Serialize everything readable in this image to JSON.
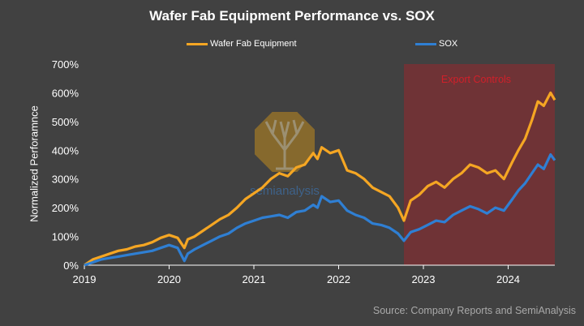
{
  "chart_data": {
    "type": "line",
    "title": "Wafer Fab Equipment Performance vs. SOX",
    "ylabel": "Normalized Perforamnce",
    "xlabel": "",
    "source": "Source: Company Reports and SemiAnalysis",
    "xlim": [
      2019.0,
      2024.55
    ],
    "ylim": [
      0,
      700
    ],
    "yticks": [
      0,
      100,
      200,
      300,
      400,
      500,
      600,
      700
    ],
    "ytick_labels": [
      "0%",
      "100%",
      "200%",
      "300%",
      "400%",
      "500%",
      "600%",
      "700%"
    ],
    "xticks": [
      2019,
      2020,
      2021,
      2022,
      2023,
      2024
    ],
    "xtick_labels": [
      "2019",
      "2020",
      "2021",
      "2022",
      "2023",
      "2024"
    ],
    "grid": false,
    "legend_position": "top",
    "annotation": {
      "label": "Export Controls",
      "x_start": 2022.77,
      "x_end": 2024.55
    },
    "watermark": "semianalysis",
    "series": [
      {
        "name": "Wafer Fab Equipment",
        "color": "#f5a623",
        "x": [
          2019.0,
          2019.1,
          2019.2,
          2019.3,
          2019.4,
          2019.5,
          2019.6,
          2019.7,
          2019.8,
          2019.9,
          2020.0,
          2020.1,
          2020.18,
          2020.22,
          2020.3,
          2020.4,
          2020.5,
          2020.6,
          2020.7,
          2020.8,
          2020.9,
          2021.0,
          2021.1,
          2021.2,
          2021.3,
          2021.4,
          2021.5,
          2021.6,
          2021.7,
          2021.75,
          2021.8,
          2021.9,
          2022.0,
          2022.1,
          2022.2,
          2022.3,
          2022.4,
          2022.5,
          2022.6,
          2022.7,
          2022.77,
          2022.85,
          2022.95,
          2023.05,
          2023.15,
          2023.25,
          2023.35,
          2023.45,
          2023.55,
          2023.65,
          2023.75,
          2023.85,
          2023.95,
          2024.05,
          2024.12,
          2024.2,
          2024.28,
          2024.35,
          2024.42,
          2024.5,
          2024.55
        ],
        "values": [
          0,
          20,
          30,
          40,
          50,
          55,
          65,
          70,
          80,
          95,
          105,
          95,
          60,
          90,
          100,
          120,
          140,
          160,
          175,
          200,
          230,
          250,
          270,
          300,
          320,
          310,
          340,
          350,
          390,
          370,
          410,
          390,
          400,
          330,
          320,
          300,
          270,
          255,
          240,
          200,
          155,
          225,
          245,
          275,
          290,
          270,
          300,
          320,
          350,
          340,
          320,
          330,
          300,
          360,
          400,
          440,
          505,
          570,
          555,
          600,
          575
        ]
      },
      {
        "name": "SOX",
        "color": "#2f7fd3",
        "x": [
          2019.0,
          2019.1,
          2019.2,
          2019.3,
          2019.4,
          2019.5,
          2019.6,
          2019.7,
          2019.8,
          2019.9,
          2020.0,
          2020.1,
          2020.18,
          2020.22,
          2020.3,
          2020.4,
          2020.5,
          2020.6,
          2020.7,
          2020.8,
          2020.9,
          2021.0,
          2021.1,
          2021.2,
          2021.3,
          2021.4,
          2021.5,
          2021.6,
          2021.7,
          2021.75,
          2021.8,
          2021.9,
          2022.0,
          2022.1,
          2022.2,
          2022.3,
          2022.4,
          2022.5,
          2022.6,
          2022.7,
          2022.77,
          2022.85,
          2022.95,
          2023.05,
          2023.15,
          2023.25,
          2023.35,
          2023.45,
          2023.55,
          2023.65,
          2023.75,
          2023.85,
          2023.95,
          2024.05,
          2024.12,
          2024.2,
          2024.28,
          2024.35,
          2024.42,
          2024.5,
          2024.55
        ],
        "values": [
          0,
          10,
          20,
          25,
          30,
          35,
          40,
          45,
          50,
          60,
          70,
          60,
          15,
          40,
          55,
          70,
          85,
          100,
          110,
          130,
          145,
          155,
          165,
          170,
          175,
          165,
          185,
          190,
          210,
          200,
          240,
          220,
          225,
          190,
          175,
          165,
          145,
          140,
          130,
          110,
          85,
          115,
          125,
          140,
          155,
          150,
          175,
          190,
          205,
          195,
          180,
          200,
          190,
          230,
          260,
          285,
          320,
          350,
          335,
          385,
          365
        ]
      }
    ]
  }
}
